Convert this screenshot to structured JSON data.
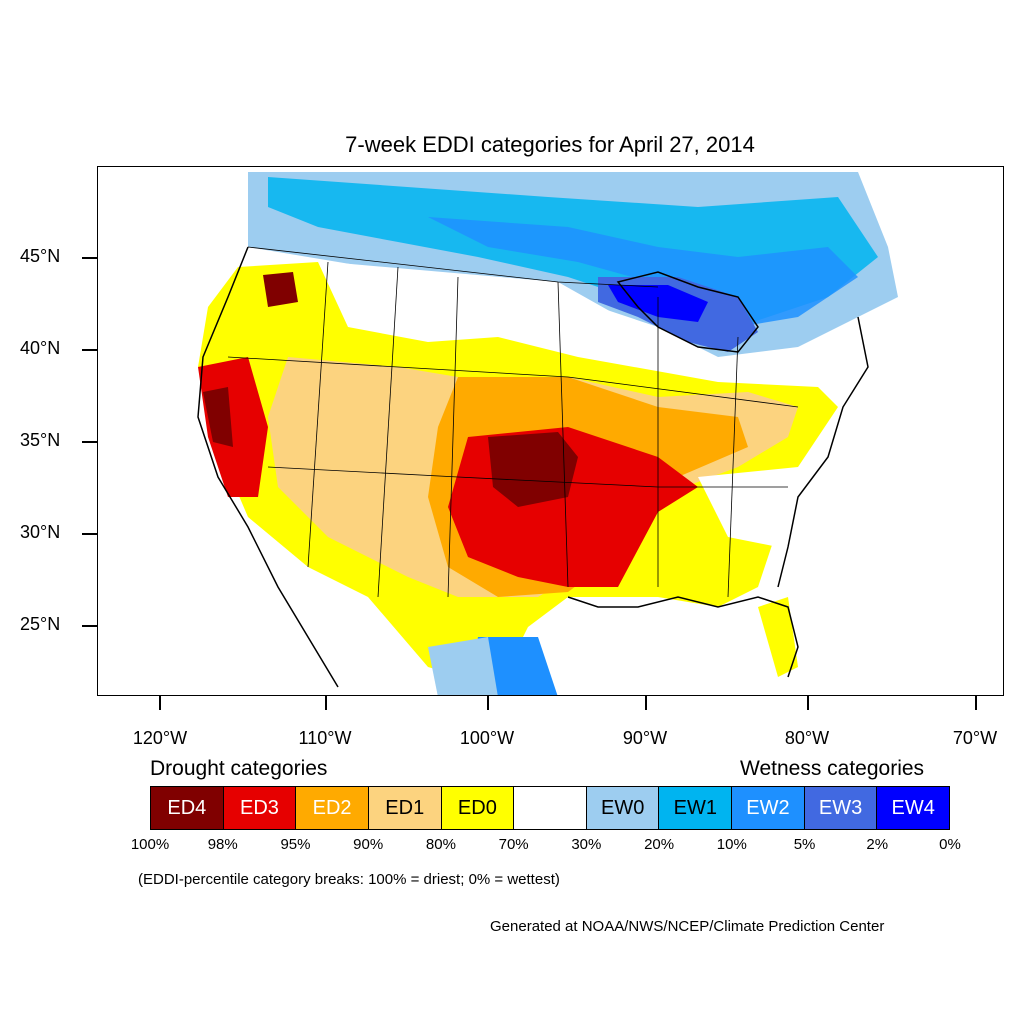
{
  "title": "7-week EDDI categories for April 27, 2014",
  "lat_labels": [
    "45°N",
    "40°N",
    "35°N",
    "30°N",
    "25°N"
  ],
  "lon_labels": [
    "120°W",
    "110°W",
    "100°W",
    "90°W",
    "80°W",
    "70°W"
  ],
  "drought_heading": "Drought categories",
  "wetness_heading": "Wetness categories",
  "legend": [
    {
      "label": "ED4",
      "color": "#800000",
      "text_color": "#ffffff"
    },
    {
      "label": "ED3",
      "color": "#e60000",
      "text_color": "#ffffff"
    },
    {
      "label": "ED2",
      "color": "#ffaa00",
      "text_color": "#ffffff"
    },
    {
      "label": "ED1",
      "color": "#fcd37f",
      "text_color": "#000000"
    },
    {
      "label": "ED0",
      "color": "#ffff00",
      "text_color": "#000000"
    },
    {
      "label": "",
      "color": "#ffffff",
      "text_color": "#000000"
    },
    {
      "label": "EW0",
      "color": "#9dcdf0",
      "text_color": "#000000"
    },
    {
      "label": "EW1",
      "color": "#00b4f0",
      "text_color": "#000000"
    },
    {
      "label": "EW2",
      "color": "#1e90ff",
      "text_color": "#ffffff"
    },
    {
      "label": "EW3",
      "color": "#4169e1",
      "text_color": "#ffffff"
    },
    {
      "label": "EW4",
      "color": "#0000ff",
      "text_color": "#ffffff"
    }
  ],
  "percentiles": [
    "100%",
    "98%",
    "95%",
    "90%",
    "80%",
    "70%",
    "30%",
    "20%",
    "10%",
    "5%",
    "2%",
    "0%"
  ],
  "note": "(EDDI-percentile category breaks: 100% = driest; 0% = wettest)",
  "credit": "Generated at NOAA/NWS/NCEP/Climate Prediction Center"
}
